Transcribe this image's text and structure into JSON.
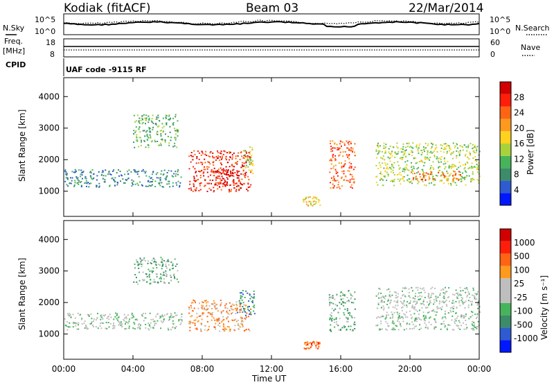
{
  "header": {
    "station": "Kodiak (fitACF)",
    "beam": "Beam 03",
    "date": "22/Mar/2014",
    "cpid_label": "CPID",
    "cpid_value": "UAF code -9115 RF"
  },
  "strip_panels": {
    "nsky_label": "N.Sky",
    "nsearch_label": "N.Search",
    "noise_ticks": [
      "10^5",
      "10^0"
    ],
    "freq_label_1": "Freq.",
    "freq_label_2": "[MHz]",
    "freq_ticks": [
      "18",
      "8"
    ],
    "nave_label": "Nave",
    "nave_ticks": [
      "60",
      "0"
    ]
  },
  "axes": {
    "x_label": "Time UT",
    "x_ticks": [
      "00:00",
      "04:00",
      "08:00",
      "12:00",
      "16:00",
      "20:00",
      "00:00"
    ],
    "x_range_hours": [
      0,
      24
    ],
    "y_label": "Slant Range [km]",
    "y_ticks": [
      "1000",
      "2000",
      "3000",
      "4000"
    ],
    "y_range_km": [
      200,
      4600
    ]
  },
  "colors": {
    "power_scale": [
      "#0018ff",
      "#2e5bd0",
      "#3c8c6a",
      "#46b45a",
      "#a8d23c",
      "#ffd21e",
      "#ff9a1e",
      "#ff6414",
      "#ff1e0a",
      "#d20000"
    ],
    "velocity_scale": [
      "#0018ff",
      "#2e5bd0",
      "#3c8c6a",
      "#46b45a",
      "#bebebe",
      "#bebebe",
      "#ff9a1e",
      "#ff6414",
      "#ff1e0a",
      "#d20000"
    ]
  },
  "chart_data": [
    {
      "type": "heatmap",
      "panel": "power",
      "y_label": "Slant Range [km]",
      "colorbar_label": "Power [dB]",
      "colorbar_ticks": [
        "28",
        "24",
        "20",
        "16",
        "12",
        "8",
        "4"
      ],
      "regions": [
        {
          "t0": 0.0,
          "t1": 6.8,
          "r0": 1150,
          "r1": 1700,
          "level": 2
        },
        {
          "t0": 4.0,
          "t1": 6.6,
          "r0": 2400,
          "r1": 3450,
          "level": 3
        },
        {
          "t0": 7.2,
          "t1": 10.8,
          "r0": 1000,
          "r1": 2300,
          "level": 8
        },
        {
          "t0": 8.7,
          "t1": 10.3,
          "r0": 1100,
          "r1": 1700,
          "level": 9
        },
        {
          "t0": 10.3,
          "t1": 10.9,
          "r0": 1550,
          "r1": 2450,
          "level": 4
        },
        {
          "t0": 13.8,
          "t1": 14.8,
          "r0": 550,
          "r1": 850,
          "level": 5
        },
        {
          "t0": 15.3,
          "t1": 16.8,
          "r0": 1100,
          "r1": 2650,
          "level": 7
        },
        {
          "t0": 18.0,
          "t1": 24.0,
          "r0": 1200,
          "r1": 2550,
          "level": 4
        },
        {
          "t0": 20.0,
          "t1": 23.0,
          "r0": 1350,
          "r1": 1650,
          "level": 7
        }
      ]
    },
    {
      "type": "heatmap",
      "panel": "velocity",
      "y_label": "Slant Range [km]",
      "colorbar_label": "Velocity [m s⁻¹]",
      "colorbar_ticks": [
        "1000",
        "500",
        "100",
        "25",
        "-25",
        "-100",
        "-500",
        "-1000"
      ],
      "regions": [
        {
          "t0": 0.0,
          "t1": 6.8,
          "r0": 1150,
          "r1": 1700,
          "level": 4
        },
        {
          "t0": 4.0,
          "t1": 6.6,
          "r0": 2600,
          "r1": 3450,
          "level": 3
        },
        {
          "t0": 7.2,
          "t1": 10.8,
          "r0": 1100,
          "r1": 2100,
          "level": 6
        },
        {
          "t0": 10.0,
          "t1": 11.0,
          "r0": 1600,
          "r1": 2450,
          "level": 2
        },
        {
          "t0": 13.8,
          "t1": 14.8,
          "r0": 550,
          "r1": 800,
          "level": 7
        },
        {
          "t0": 15.3,
          "t1": 16.8,
          "r0": 1100,
          "r1": 2400,
          "level": 3
        },
        {
          "t0": 18.0,
          "t1": 24.0,
          "r0": 1150,
          "r1": 2500,
          "level": 4
        }
      ]
    }
  ]
}
